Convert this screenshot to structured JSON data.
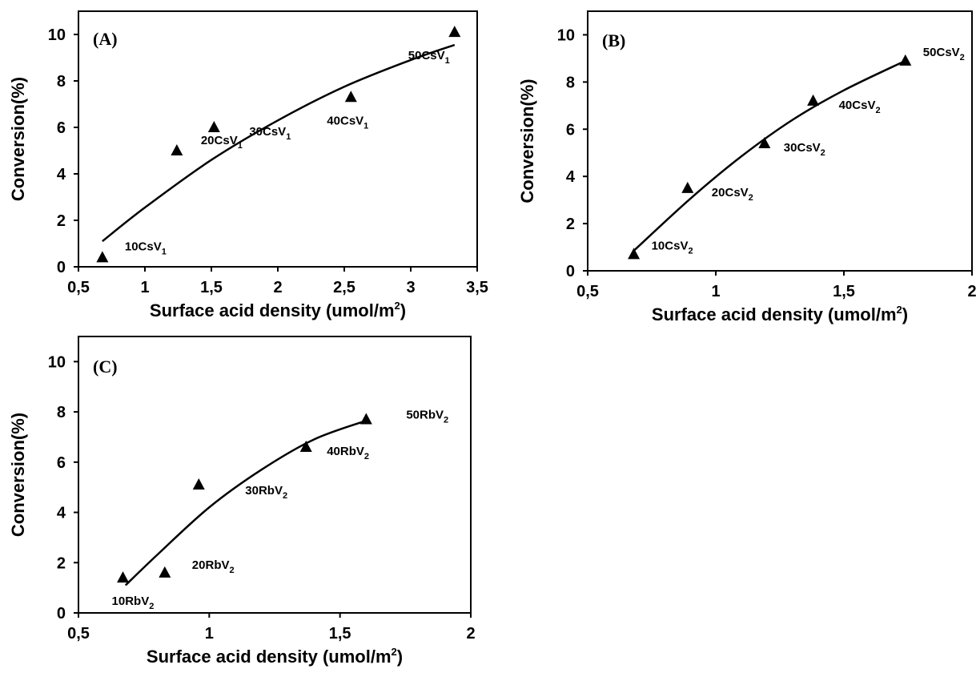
{
  "chart_data": [
    {
      "type": "scatter",
      "panel_label": "(A)",
      "xlabel": "Surface acid density (umol/m2)",
      "xlabel_main": "Surface acid density (umol/m",
      "xlabel_sup": "2",
      "xlabel_end": ")",
      "ylabel": "Conversion(%)",
      "xlim": [
        0.5,
        3.5
      ],
      "ylim": [
        0,
        11
      ],
      "xticks": [
        "0,5",
        "1",
        "1,5",
        "2",
        "2,5",
        "3",
        "3,5"
      ],
      "xtick_values": [
        0.5,
        1,
        1.5,
        2,
        2.5,
        3,
        3.5
      ],
      "yticks": [
        "0",
        "2",
        "4",
        "6",
        "8",
        "10"
      ],
      "ytick_values": [
        0,
        2,
        4,
        6,
        8,
        10
      ],
      "grid": false,
      "series": [
        {
          "marker": "triangle",
          "points": [
            {
              "x": 0.68,
              "y": 0.4,
              "label": "10CsV",
              "label_sub": "1"
            },
            {
              "x": 1.24,
              "y": 5.0,
              "label": "20CsV",
              "label_sub": "1"
            },
            {
              "x": 1.52,
              "y": 6.0,
              "label": "30CsV",
              "label_sub": "1"
            },
            {
              "x": 2.55,
              "y": 7.3,
              "label": "40CsV",
              "label_sub": "1"
            },
            {
              "x": 3.33,
              "y": 10.1,
              "label": "50CsV",
              "label_sub": "1"
            }
          ],
          "trendline": {
            "type": "polynomial",
            "x_range": [
              0.68,
              3.33
            ],
            "points": [
              [
                0.68,
                1.1
              ],
              [
                1.0,
                2.55
              ],
              [
                1.5,
                4.6
              ],
              [
                2.0,
                6.3
              ],
              [
                2.5,
                7.75
              ],
              [
                3.0,
                8.9
              ],
              [
                3.33,
                9.55
              ]
            ]
          }
        }
      ]
    },
    {
      "type": "scatter",
      "panel_label": "(B)",
      "xlabel": "Surface acid density (umol/m2)",
      "xlabel_main": "Surface acid density (umol/m",
      "xlabel_sup": "2",
      "xlabel_end": ")",
      "ylabel": "Conversion(%)",
      "xlim": [
        0.5,
        2
      ],
      "ylim": [
        0,
        11
      ],
      "xticks": [
        "0,5",
        "1",
        "1,5",
        "2"
      ],
      "xtick_values": [
        0.5,
        1,
        1.5,
        2
      ],
      "yticks": [
        "0",
        "2",
        "4",
        "6",
        "8",
        "10"
      ],
      "ytick_values": [
        0,
        2,
        4,
        6,
        8,
        10
      ],
      "grid": false,
      "series": [
        {
          "marker": "triangle",
          "points": [
            {
              "x": 0.68,
              "y": 0.7,
              "label": "10CsV",
              "label_sub": "2"
            },
            {
              "x": 0.89,
              "y": 3.5,
              "label": "20CsV",
              "label_sub": "2"
            },
            {
              "x": 1.19,
              "y": 5.4,
              "label": "30CsV",
              "label_sub": "2"
            },
            {
              "x": 1.38,
              "y": 7.2,
              "label": "40CsV",
              "label_sub": "2"
            },
            {
              "x": 1.74,
              "y": 8.9,
              "label": "50CsV",
              "label_sub": "2"
            }
          ],
          "trendline": {
            "type": "polynomial",
            "x_range": [
              0.68,
              1.74
            ],
            "points": [
              [
                0.68,
                0.85
              ],
              [
                0.9,
                3.05
              ],
              [
                1.1,
                4.85
              ],
              [
                1.3,
                6.4
              ],
              [
                1.5,
                7.65
              ],
              [
                1.74,
                8.9
              ]
            ]
          }
        }
      ]
    },
    {
      "type": "scatter",
      "panel_label": "(C)",
      "xlabel": "Surface acid density (umol/m2)",
      "xlabel_main": "Surface acid density (umol/m",
      "xlabel_sup": "2",
      "xlabel_end": ")",
      "ylabel": "Conversion(%)",
      "xlim": [
        0.5,
        2
      ],
      "ylim": [
        0,
        11
      ],
      "xticks": [
        "0,5",
        "1",
        "1,5",
        "2"
      ],
      "xtick_values": [
        0.5,
        1,
        1.5,
        2
      ],
      "yticks": [
        "0",
        "2",
        "4",
        "6",
        "8",
        "10"
      ],
      "ytick_values": [
        0,
        2,
        4,
        6,
        8,
        10
      ],
      "grid": false,
      "series": [
        {
          "marker": "triangle",
          "points": [
            {
              "x": 0.67,
              "y": 1.4,
              "label": "10RbV",
              "label_sub": "2"
            },
            {
              "x": 0.83,
              "y": 1.6,
              "label": "20RbV",
              "label_sub": "2"
            },
            {
              "x": 0.96,
              "y": 5.1,
              "label": "30RbV",
              "label_sub": "2"
            },
            {
              "x": 1.37,
              "y": 6.6,
              "label": "40RbV",
              "label_sub": "2"
            },
            {
              "x": 1.6,
              "y": 7.7,
              "label": "50RbV",
              "label_sub": "2"
            }
          ],
          "trendline": {
            "type": "polynomial",
            "x_range": [
              0.68,
              1.6
            ],
            "points": [
              [
                0.68,
                1.1
              ],
              [
                0.8,
                2.3
              ],
              [
                1.0,
                4.2
              ],
              [
                1.2,
                5.7
              ],
              [
                1.4,
                6.9
              ],
              [
                1.6,
                7.65
              ]
            ]
          }
        }
      ]
    }
  ]
}
